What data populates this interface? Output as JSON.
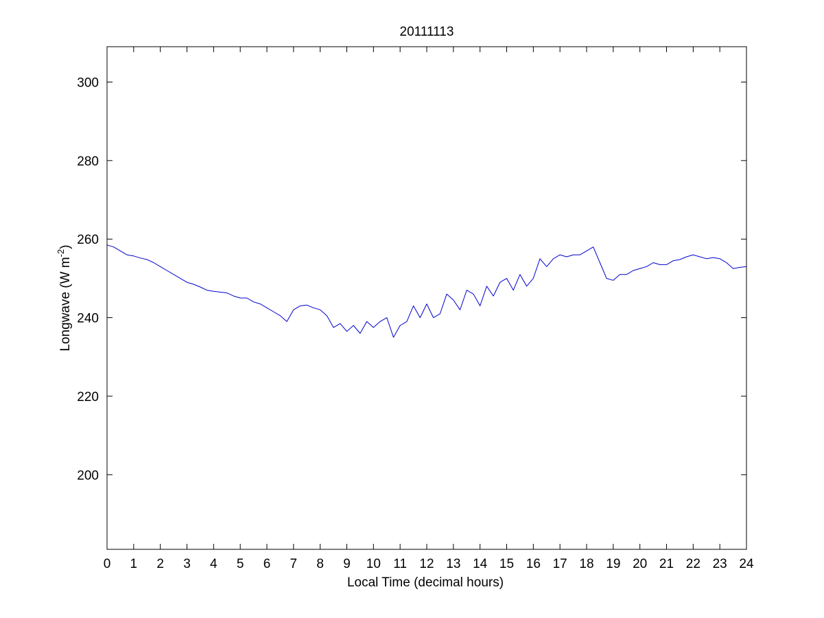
{
  "chart_data": {
    "type": "line",
    "title": "20111113",
    "xlabel": "Local Time (decimal hours)",
    "ylabel": "Longwave (W m-2)",
    "ylabel_parts": {
      "main": "Longwave (W m",
      "sup": "-2",
      "close": ")"
    },
    "xlim": [
      0,
      24
    ],
    "ylim": [
      181,
      309
    ],
    "xticks": [
      0,
      1,
      2,
      3,
      4,
      5,
      6,
      7,
      8,
      9,
      10,
      11,
      12,
      13,
      14,
      15,
      16,
      17,
      18,
      19,
      20,
      21,
      22,
      23,
      24
    ],
    "yticks": [
      200,
      220,
      240,
      260,
      280,
      300
    ],
    "grid": false,
    "series": [
      {
        "color": "#0000cc",
        "x": [
          0,
          0.25,
          0.5,
          0.75,
          1,
          1.25,
          1.5,
          1.75,
          2,
          2.25,
          2.5,
          2.75,
          3,
          3.25,
          3.5,
          3.75,
          4,
          4.25,
          4.5,
          4.75,
          5,
          5.25,
          5.5,
          5.75,
          6,
          6.25,
          6.5,
          6.75,
          7,
          7.25,
          7.5,
          7.75,
          8,
          8.25,
          8.5,
          8.75,
          9,
          9.25,
          9.5,
          9.75,
          10,
          10.25,
          10.5,
          10.75,
          11,
          11.25,
          11.5,
          11.75,
          12,
          12.25,
          12.5,
          12.75,
          13,
          13.25,
          13.5,
          13.75,
          14,
          14.25,
          14.5,
          14.75,
          15,
          15.25,
          15.5,
          15.75,
          16,
          16.25,
          16.5,
          16.75,
          17,
          17.25,
          17.5,
          17.75,
          18,
          18.25,
          18.5,
          18.75,
          19,
          19.25,
          19.5,
          19.75,
          20,
          20.25,
          20.5,
          20.75,
          21,
          21.25,
          21.5,
          21.75,
          22,
          22.25,
          22.5,
          22.75,
          23,
          23.25,
          23.5,
          23.75,
          24
        ],
        "y": [
          258.5,
          258,
          257,
          256,
          255.7,
          255.2,
          254.8,
          254,
          253,
          252,
          251,
          250,
          249,
          248.5,
          247.8,
          247,
          246.7,
          246.5,
          246.3,
          245.5,
          245,
          245,
          244,
          243.5,
          242.5,
          241.5,
          240.5,
          239,
          242,
          243,
          243.2,
          242.5,
          242,
          240.5,
          237.5,
          238.5,
          236.5,
          238,
          236,
          239,
          237.5,
          239,
          240,
          235,
          238,
          239,
          243,
          240,
          243.5,
          240,
          241,
          246,
          244.5,
          242,
          247,
          246,
          243,
          248,
          245.5,
          249,
          250,
          247,
          251,
          248,
          250,
          255,
          253,
          255,
          256,
          255.5,
          256,
          256,
          257,
          258,
          254,
          250,
          249.5,
          251,
          251,
          252,
          252.5,
          253,
          254,
          253.5,
          253.5,
          254.5,
          254.8,
          255.5,
          256,
          255.5,
          255,
          255.3,
          255,
          254,
          252.5,
          252.8,
          253
        ]
      }
    ]
  }
}
